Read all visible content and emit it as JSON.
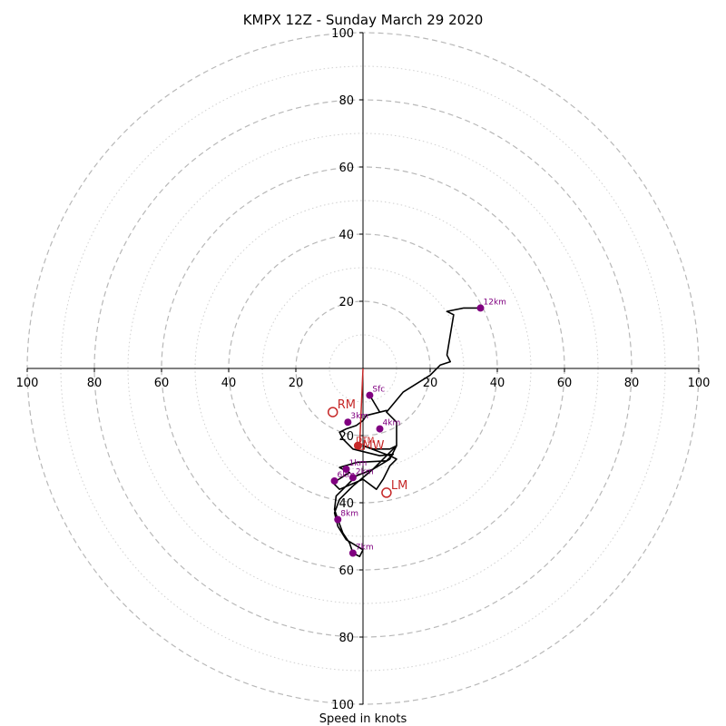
{
  "chart_data": {
    "type": "scatter",
    "title": "KMPX 12Z - Sunday March 29 2020",
    "xlabel": "Speed in knots",
    "ylabel": "",
    "xlim": [
      -100,
      100
    ],
    "ylim": [
      -100,
      100
    ],
    "ring_major": [
      20,
      40,
      60,
      80,
      100
    ],
    "ring_minor": [
      10,
      30,
      50,
      70,
      90
    ],
    "tick_labels_x": [
      "100",
      "80",
      "60",
      "40",
      "20",
      "20",
      "40",
      "60",
      "80",
      "100"
    ],
    "tick_labels_y": [
      "100",
      "80",
      "60",
      "40",
      "20",
      "20",
      "40",
      "60",
      "80",
      "100"
    ],
    "hodograph": {
      "color": "#000000",
      "points": [
        [
          2,
          -8
        ],
        [
          5,
          -13
        ],
        [
          7,
          -12.5
        ],
        [
          1,
          -14
        ],
        [
          0,
          -15.5
        ],
        [
          -2,
          -17
        ],
        [
          -5,
          -18
        ],
        [
          -7,
          -19
        ],
        [
          -6,
          -21
        ],
        [
          -3,
          -24
        ],
        [
          5,
          -26
        ],
        [
          9,
          -25.5
        ],
        [
          7,
          -27.5
        ],
        [
          -2,
          -28
        ],
        [
          -7,
          -29.5
        ],
        [
          -4,
          -31
        ],
        [
          -8,
          -33.5
        ],
        [
          -9,
          -34
        ],
        [
          -7,
          -36
        ],
        [
          0,
          -33
        ],
        [
          4,
          -36
        ],
        [
          6,
          -33
        ],
        [
          8,
          -29
        ],
        [
          10,
          -27
        ],
        [
          8,
          -26
        ],
        [
          0,
          -23
        ],
        [
          3,
          -24
        ],
        [
          8,
          -24
        ],
        [
          10,
          -23
        ],
        [
          3,
          -30
        ],
        [
          -2,
          -32
        ],
        [
          -8,
          -38
        ],
        [
          -8.5,
          -42
        ],
        [
          -7.5,
          -45
        ],
        [
          -6,
          -49
        ],
        [
          -4,
          -52
        ],
        [
          -3,
          -55
        ],
        [
          -1,
          -56
        ],
        [
          0,
          -54
        ],
        [
          -5,
          -51
        ],
        [
          -7.5,
          -47
        ],
        [
          -8.5,
          -43
        ],
        [
          -7,
          -39
        ],
        [
          -3,
          -35
        ],
        [
          3,
          -30
        ],
        [
          8,
          -27
        ],
        [
          10,
          -23
        ],
        [
          10,
          -16
        ],
        [
          7,
          -13
        ],
        [
          12,
          -7
        ],
        [
          20,
          -2
        ],
        [
          23,
          1
        ],
        [
          26,
          2
        ],
        [
          25,
          4
        ],
        [
          27,
          16
        ],
        [
          25,
          17
        ],
        [
          30,
          18
        ],
        [
          35,
          18
        ]
      ]
    },
    "height_markers": [
      {
        "label": "Sfc",
        "u": 2,
        "v": -8
      },
      {
        "label": "3km",
        "u": -4.5,
        "v": -16
      },
      {
        "label": "4km",
        "u": 5,
        "v": -18
      },
      {
        "label": "1km",
        "u": -5,
        "v": -30
      },
      {
        "label": "2km",
        "u": -3,
        "v": -32.5
      },
      {
        "label": "6km",
        "u": -8.5,
        "v": -33.5
      },
      {
        "label": "8km",
        "u": -7.5,
        "v": -45
      },
      {
        "label": "7km",
        "u": -3,
        "v": -55
      },
      {
        "label": "12km",
        "u": 35,
        "v": 18
      }
    ],
    "marker_color": "#800080",
    "storm_motion": {
      "color": "#c62828",
      "RM": {
        "label": "RM",
        "u": -9,
        "v": -13
      },
      "LM": {
        "label": "LM",
        "u": 7,
        "v": -37
      },
      "MW": {
        "label": "MW",
        "u": -1.5,
        "v": -23
      },
      "DTM": {
        "label": "DTM",
        "u": -0.5,
        "v": -23.3
      },
      "vector_tip": {
        "u": -1,
        "v": -23
      }
    },
    "annotation_labels": {
      "dtm_label": "DTM",
      "mw_label": "MW"
    },
    "grid": true
  }
}
